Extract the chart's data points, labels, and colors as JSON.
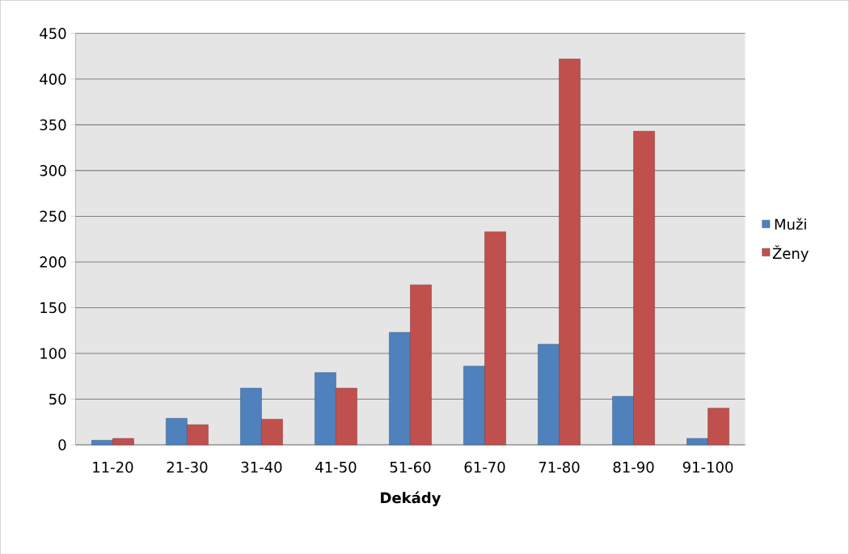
{
  "chart_data": {
    "type": "bar",
    "xlabel": "Dekády",
    "categories": [
      "11-20",
      "21-30",
      "31-40",
      "41-50",
      "51-60",
      "61-70",
      "71-80",
      "81-90",
      "91-100"
    ],
    "series": [
      {
        "name": "Muži",
        "color": "#4f81bd",
        "values": [
          5,
          29,
          62,
          79,
          123,
          86,
          110,
          53,
          7
        ]
      },
      {
        "name": "Ženy",
        "color": "#c0504d",
        "values": [
          7,
          22,
          28,
          62,
          175,
          233,
          422,
          343,
          40
        ]
      }
    ],
    "ylim": [
      0,
      450
    ],
    "yticks": [
      0,
      50,
      100,
      150,
      200,
      250,
      300,
      350,
      400,
      450
    ],
    "grid": "y",
    "legend": "right"
  }
}
